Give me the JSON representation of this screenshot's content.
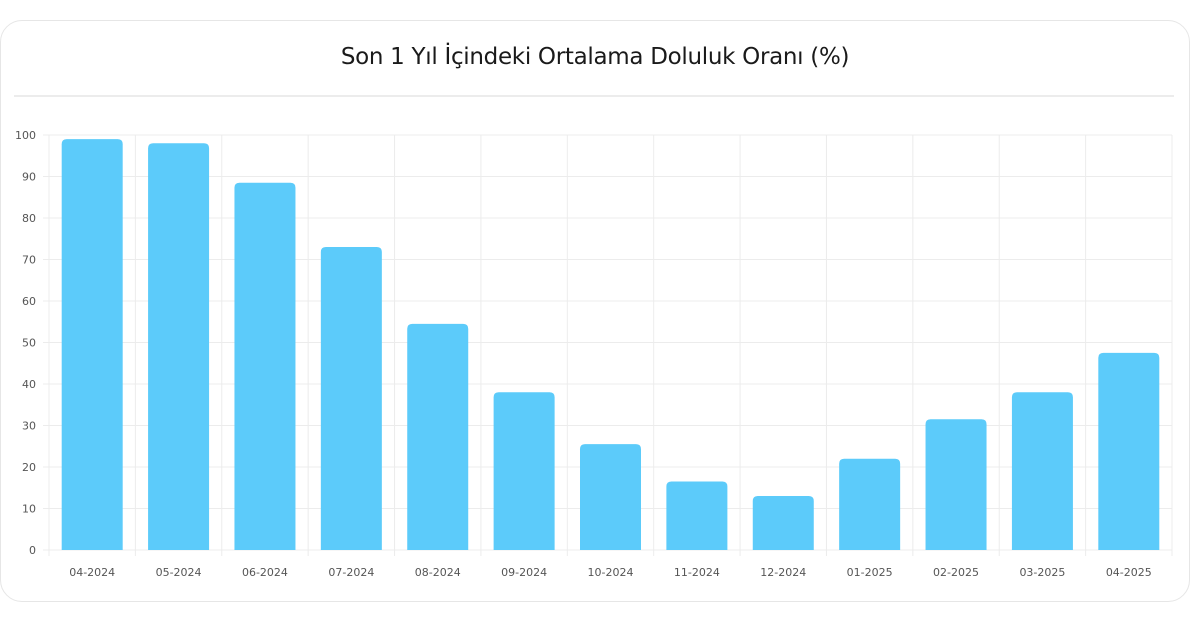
{
  "chart_data": {
    "type": "bar",
    "title": "Son 1 Yıl İçindeki Ortalama Doluluk Oranı (%)",
    "xlabel": "",
    "ylabel": "",
    "categories": [
      "04-2024",
      "05-2024",
      "06-2024",
      "07-2024",
      "08-2024",
      "09-2024",
      "10-2024",
      "11-2024",
      "12-2024",
      "01-2025",
      "02-2025",
      "03-2025",
      "04-2025"
    ],
    "values": [
      99,
      98,
      88.5,
      73,
      54.5,
      38,
      25.5,
      16.5,
      13,
      22,
      31.5,
      38,
      47.5
    ],
    "ylim": [
      0,
      100
    ],
    "yticks": [
      0,
      10,
      20,
      30,
      40,
      50,
      60,
      70,
      80,
      90,
      100
    ],
    "grid": true,
    "bar_color": "#5ccbfa",
    "grid_color": "#ececec",
    "legend": "none"
  }
}
